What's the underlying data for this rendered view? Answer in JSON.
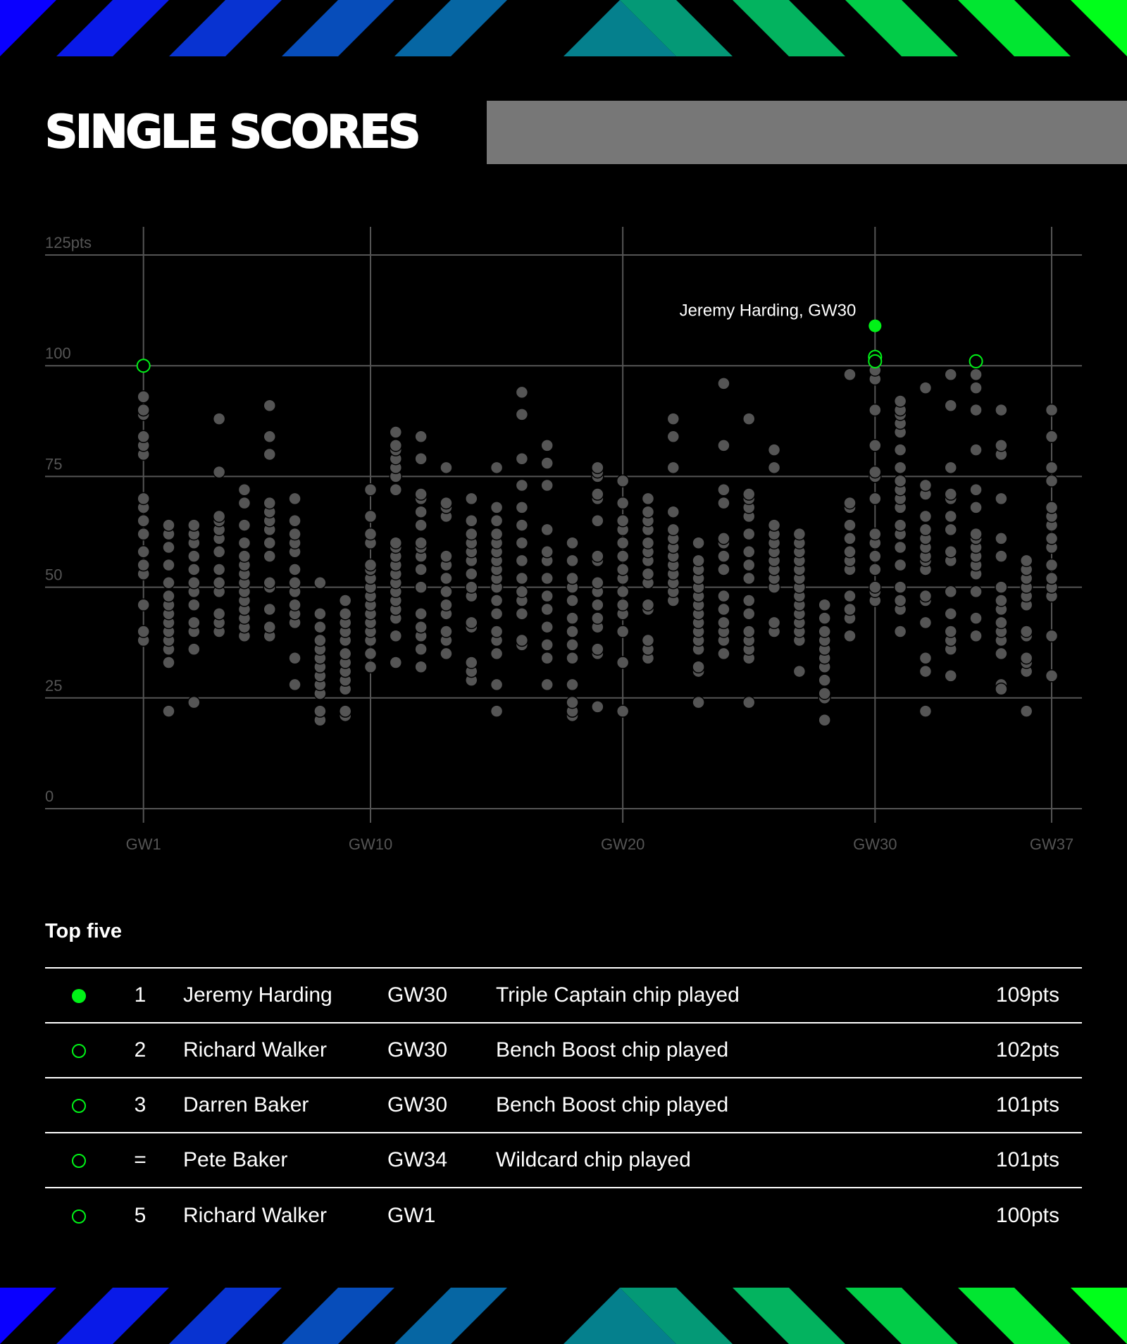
{
  "page": {
    "title": "SINGLE SCORES",
    "colors": {
      "background": "#000000",
      "highlight": "#00F217",
      "dot": "#555555",
      "grid": "#555555",
      "title_bar": "#777777",
      "band_start": "#0A00FF",
      "band_end": "#00FF1A"
    }
  },
  "chart_data": {
    "type": "scatter",
    "title": "",
    "xlabel": "",
    "ylabel": "",
    "xlim": [
      -2.9,
      38.2
    ],
    "ylim": [
      0,
      125
    ],
    "x_ticks": [
      1,
      10,
      20,
      30,
      37
    ],
    "x_tick_labels": [
      "GW1",
      "GW10",
      "GW20",
      "GW30",
      "GW37"
    ],
    "y_ticks": [
      0,
      25,
      50,
      75,
      100,
      125
    ],
    "y_tick_labels": [
      "0",
      "25",
      "50",
      "75",
      "100",
      "125pts"
    ],
    "grid": true,
    "annotation": {
      "text": "Jeremy Harding, GW30",
      "x": 30,
      "y": 109
    },
    "highlights": [
      {
        "gw": 30,
        "pts": 109,
        "style": "filled"
      },
      {
        "gw": 30,
        "pts": 102,
        "style": "hollow"
      },
      {
        "gw": 30,
        "pts": 101,
        "style": "hollow"
      },
      {
        "gw": 34,
        "pts": 101,
        "style": "hollow"
      },
      {
        "gw": 1,
        "pts": 100,
        "style": "hollow"
      }
    ],
    "scores": {
      "1": [
        38,
        40,
        46,
        53,
        55,
        58,
        62,
        65,
        68,
        70,
        80,
        82,
        84,
        89,
        90,
        93
      ],
      "2": [
        22,
        33,
        36,
        38,
        40,
        42,
        44,
        46,
        48,
        51,
        55,
        59,
        62,
        64
      ],
      "3": [
        24,
        36,
        40,
        42,
        46,
        49,
        51,
        54,
        57,
        60,
        62,
        64
      ],
      "4": [
        40,
        42,
        44,
        49,
        51,
        54,
        58,
        61,
        63,
        65,
        66,
        76,
        88
      ],
      "5": [
        39,
        41,
        43,
        45,
        47,
        49,
        51,
        53,
        55,
        57,
        60,
        64,
        69,
        72
      ],
      "6": [
        39,
        41,
        45,
        50,
        51,
        57,
        60,
        63,
        65,
        67,
        69,
        80,
        84,
        91
      ],
      "7": [
        28,
        34,
        42,
        44,
        46,
        49,
        51,
        54,
        58,
        60,
        62,
        65,
        70
      ],
      "8": [
        20,
        22,
        26,
        28,
        30,
        32,
        34,
        36,
        38,
        41,
        44,
        51
      ],
      "9": [
        21,
        22,
        27,
        29,
        31,
        33,
        35,
        38,
        40,
        42,
        44,
        47
      ],
      "10": [
        32,
        35,
        38,
        40,
        42,
        44,
        46,
        48,
        50,
        52,
        54,
        55,
        60,
        62,
        66,
        72
      ],
      "11": [
        33,
        39,
        43,
        45,
        47,
        49,
        51,
        53,
        55,
        57,
        59,
        60,
        72,
        75,
        77,
        79,
        81,
        82,
        85
      ],
      "12": [
        32,
        36,
        39,
        41,
        44,
        50,
        54,
        57,
        59,
        60,
        64,
        67,
        70,
        71,
        79,
        84
      ],
      "13": [
        35,
        38,
        40,
        44,
        46,
        49,
        52,
        55,
        57,
        66,
        68,
        69,
        77
      ],
      "14": [
        29,
        31,
        33,
        41,
        42,
        48,
        50,
        53,
        56,
        58,
        60,
        62,
        65,
        70
      ],
      "15": [
        22,
        28,
        35,
        38,
        40,
        44,
        47,
        50,
        52,
        54,
        56,
        58,
        60,
        62,
        65,
        68,
        77
      ],
      "16": [
        37,
        38,
        44,
        47,
        49,
        52,
        56,
        60,
        64,
        68,
        73,
        79,
        89,
        94
      ],
      "17": [
        28,
        34,
        37,
        41,
        45,
        48,
        52,
        56,
        58,
        63,
        73,
        78,
        82
      ],
      "18": [
        21,
        22,
        24,
        28,
        34,
        37,
        40,
        43,
        47,
        50,
        52,
        56,
        60
      ],
      "19": [
        23,
        35,
        36,
        41,
        43,
        46,
        49,
        51,
        56,
        57,
        65,
        70,
        71,
        75,
        76,
        77
      ],
      "20": [
        22,
        33,
        40,
        44,
        46,
        49,
        52,
        54,
        57,
        60,
        63,
        65,
        69,
        74
      ],
      "21": [
        34,
        36,
        38,
        45,
        46,
        51,
        53,
        56,
        58,
        60,
        63,
        65,
        67,
        70
      ],
      "22": [
        47,
        49,
        51,
        53,
        55,
        57,
        59,
        61,
        63,
        67,
        77,
        84,
        88
      ],
      "23": [
        24,
        31,
        32,
        36,
        38,
        40,
        42,
        44,
        46,
        48,
        50,
        52,
        54,
        56,
        60
      ],
      "24": [
        35,
        38,
        40,
        42,
        45,
        48,
        54,
        57,
        60,
        61,
        69,
        72,
        82,
        96
      ],
      "25": [
        24,
        34,
        36,
        38,
        40,
        44,
        47,
        52,
        55,
        58,
        62,
        66,
        68,
        70,
        71,
        88
      ],
      "26": [
        40,
        42,
        50,
        52,
        54,
        56,
        58,
        60,
        62,
        64,
        77,
        81
      ],
      "27": [
        31,
        38,
        40,
        42,
        44,
        46,
        48,
        50,
        52,
        54,
        56,
        58,
        60,
        62
      ],
      "28": [
        20,
        25,
        26,
        29,
        32,
        34,
        36,
        38,
        40,
        43,
        46
      ],
      "29": [
        39,
        43,
        45,
        48,
        54,
        56,
        58,
        61,
        64,
        68,
        69,
        98
      ],
      "30": [
        47,
        49,
        50,
        54,
        57,
        60,
        62,
        70,
        75,
        76,
        82,
        90,
        97,
        99
      ],
      "31": [
        40,
        45,
        47,
        50,
        55,
        59,
        62,
        64,
        68,
        70,
        72,
        74,
        77,
        81,
        85,
        87,
        89,
        90,
        92
      ],
      "32": [
        22,
        31,
        34,
        42,
        47,
        48,
        54,
        56,
        57,
        59,
        61,
        63,
        66,
        71,
        73,
        95
      ],
      "33": [
        30,
        36,
        38,
        40,
        44,
        49,
        56,
        58,
        63,
        66,
        70,
        71,
        77,
        91,
        98
      ],
      "34": [
        39,
        43,
        49,
        53,
        55,
        57,
        59,
        61,
        62,
        68,
        72,
        81,
        90,
        95,
        98
      ],
      "35": [
        28,
        27,
        35,
        38,
        40,
        42,
        45,
        47,
        50,
        57,
        61,
        70,
        80,
        82,
        90
      ],
      "36": [
        22,
        31,
        33,
        34,
        39,
        40,
        46,
        48,
        50,
        52,
        54,
        56
      ],
      "37": [
        30,
        39,
        48,
        50,
        52,
        55,
        59,
        61,
        64,
        66,
        68,
        74,
        77,
        84,
        90
      ]
    }
  },
  "top_five": {
    "title": "Top five",
    "rows": [
      {
        "mark": "filled",
        "rank": "1",
        "name": "Jeremy Harding",
        "gw": "GW30",
        "note": "Triple Captain chip played",
        "pts": "109pts"
      },
      {
        "mark": "hollow",
        "rank": "2",
        "name": "Richard Walker",
        "gw": "GW30",
        "note": "Bench Boost chip played",
        "pts": "102pts"
      },
      {
        "mark": "hollow",
        "rank": "3",
        "name": "Darren Baker",
        "gw": "GW30",
        "note": "Bench Boost chip played",
        "pts": "101pts"
      },
      {
        "mark": "hollow",
        "rank": "=",
        "name": "Pete Baker",
        "gw": "GW34",
        "note": "Wildcard chip played",
        "pts": "101pts"
      },
      {
        "mark": "hollow",
        "rank": "5",
        "name": "Richard Walker",
        "gw": "GW1",
        "note": "",
        "pts": "100pts"
      }
    ]
  }
}
